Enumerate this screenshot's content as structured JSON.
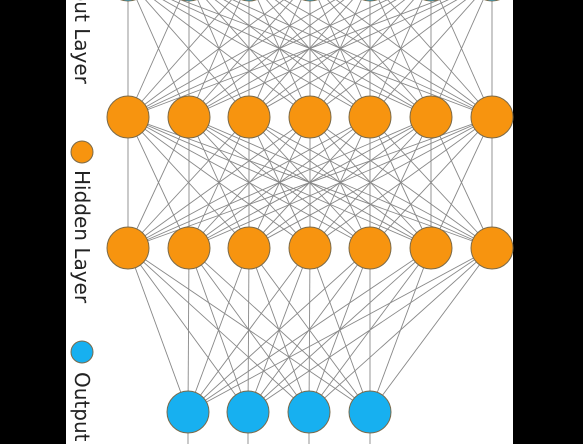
{
  "legend": {
    "items": [
      {
        "label": "Input Layer",
        "color": ""
      },
      {
        "label": "Hidden Layer",
        "color": "#f7940f"
      },
      {
        "label": "Output",
        "color": "#17b0f0"
      }
    ]
  },
  "network": {
    "layers": [
      {
        "role": "input",
        "color": "#17b0f0",
        "nodes": 7
      },
      {
        "role": "hidden",
        "color": "#f7940f",
        "nodes": 7
      },
      {
        "role": "hidden",
        "color": "#f7940f",
        "nodes": 7
      },
      {
        "role": "output",
        "color": "#17b0f0",
        "nodes": 4
      }
    ],
    "edge_color": "#888888",
    "node_stroke": "#7a6a4a"
  }
}
